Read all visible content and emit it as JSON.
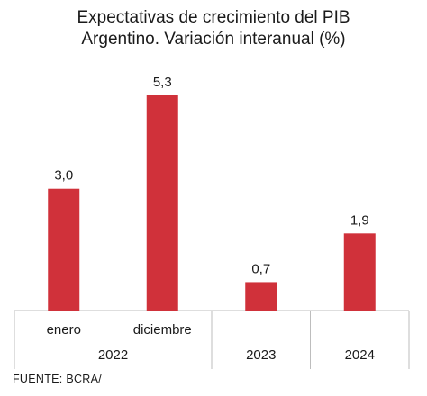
{
  "chart_data": {
    "type": "bar",
    "title_lines": [
      "Expectativas de crecimiento del PIB",
      "Argentino. Variación interanual (%)"
    ],
    "categories": [
      "enero",
      "diciembre",
      "",
      ""
    ],
    "groups": [
      "2022",
      "2022",
      "2023",
      "2024"
    ],
    "group_labels": [
      "2022",
      "2023",
      "2024"
    ],
    "values": [
      3.0,
      5.3,
      0.7,
      1.9
    ],
    "data_labels": [
      "3,0",
      "5,3",
      "0,7",
      "1,9"
    ],
    "bar_color": "#d0313a",
    "ylim": [
      0,
      5.3
    ],
    "grid": false,
    "legend": "none"
  },
  "source": "FUENTE: BCRA/"
}
